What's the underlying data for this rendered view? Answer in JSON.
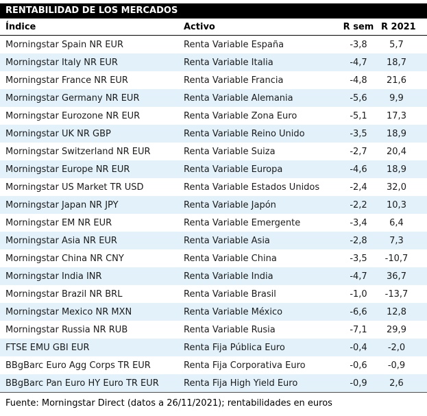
{
  "colors": {
    "title_bg": "#000000",
    "title_text": "#ffffff",
    "zebra_row": "#e3f2fa",
    "body_text": "#1a1a1a",
    "header_rule": "#000000",
    "bottom_rule": "#4d4d4d"
  },
  "chart_data": {
    "type": "table",
    "title": "RENTABILIDAD DE LOS MERCADOS",
    "columns": [
      "Índice",
      "Activo",
      "R sem",
      "R 2021"
    ],
    "rows": [
      [
        "Morningstar Spain NR EUR",
        "Renta Variable España",
        "-3,8",
        "5,7"
      ],
      [
        "Morningstar Italy NR EUR",
        "Renta Variable Italia",
        "-4,7",
        "18,7"
      ],
      [
        "Morningstar France NR EUR",
        "Renta Variable Francia",
        "-4,8",
        "21,6"
      ],
      [
        "Morningstar Germany NR EUR",
        "Renta Variable Alemania",
        "-5,6",
        "9,9"
      ],
      [
        "Morningstar Eurozone NR EUR",
        "Renta Variable Zona Euro",
        "-5,1",
        "17,3"
      ],
      [
        "Morningstar UK NR GBP",
        "Renta Variable Reino Unido",
        "-3,5",
        "18,9"
      ],
      [
        "Morningstar Switzerland NR EUR",
        "Renta Variable Suiza",
        "-2,7",
        "20,4"
      ],
      [
        "Morningstar Europe NR EUR",
        "Renta Variable Europa",
        "-4,6",
        "18,9"
      ],
      [
        "Morningstar US Market TR USD",
        "Renta Variable Estados Unidos",
        "-2,4",
        "32,0"
      ],
      [
        "Morningstar Japan NR JPY",
        "Renta Variable Japón",
        "-2,2",
        "10,3"
      ],
      [
        "Morningstar EM NR EUR",
        "Renta Variable Emergente",
        "-3,4",
        "6,4"
      ],
      [
        "Morningstar Asia NR EUR",
        "Renta Variable Asia",
        "-2,8",
        "7,3"
      ],
      [
        "Morningstar China NR CNY",
        "Renta Variable China",
        "-3,5",
        "-10,7"
      ],
      [
        "Morningstar India INR",
        "Renta Variable India",
        "-4,7",
        "36,7"
      ],
      [
        "Morningstar Brazil NR BRL",
        "Renta Variable Brasil",
        "-1,0",
        "-13,7"
      ],
      [
        "Morningstar Mexico NR MXN",
        "Renta Variable México",
        "-6,6",
        "12,8"
      ],
      [
        "Morningstar Russia NR RUB",
        "Renta Variable Rusia",
        "-7,1",
        "29,9"
      ],
      [
        "FTSE EMU GBI EUR",
        "Renta Fija Pública Euro",
        "-0,4",
        "-2,0"
      ],
      [
        "BBgBarc Euro Agg Corps TR EUR",
        "Renta Fija Corporativa Euro",
        "-0,6",
        "-0,9"
      ],
      [
        "BBgBarc Pan Euro HY Euro TR EUR",
        "Renta Fija High Yield Euro",
        "-0,9",
        "2,6"
      ]
    ],
    "footer": "Fuente: Morningstar Direct (datos a 26/11/2021); rentabilidades en euros",
    "layout": {
      "zebra": "even rows shaded light blue",
      "numeric_columns_alignment": "center"
    }
  }
}
